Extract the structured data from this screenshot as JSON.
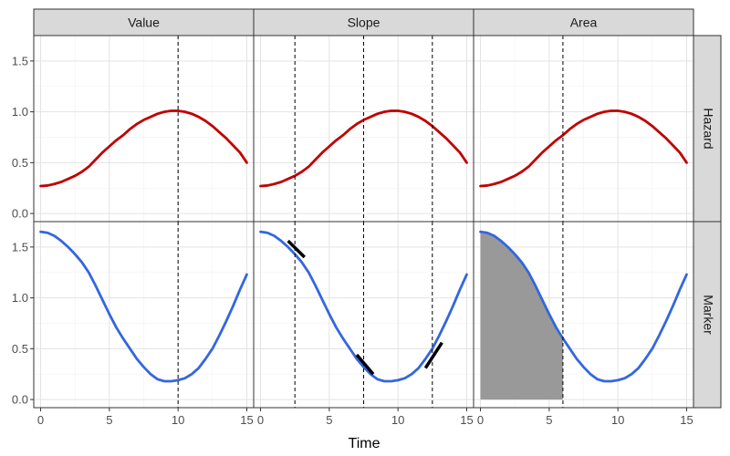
{
  "chart_data": {
    "type": "line",
    "xlabel": "Time",
    "ylabel": "",
    "xlim": [
      -0.5,
      15.5
    ],
    "ylim": [
      -0.08,
      1.75
    ],
    "x_ticks": [
      0,
      5,
      10,
      15
    ],
    "y_ticks": [
      0.0,
      0.5,
      1.0,
      1.5
    ],
    "x_tick_labels": [
      "0",
      "5",
      "10",
      "15"
    ],
    "y_tick_labels": [
      "0.0",
      "0.5",
      "1.0",
      "1.5"
    ],
    "columns": [
      "Value",
      "Slope",
      "Area"
    ],
    "rows": [
      "Hazard",
      "Marker"
    ],
    "grid": true,
    "series": [
      {
        "row": "Hazard",
        "color": "#c00000",
        "x": [
          0,
          0.5,
          1,
          1.5,
          2,
          2.5,
          3,
          3.5,
          4,
          4.5,
          5,
          5.5,
          6,
          6.5,
          7,
          7.5,
          8,
          8.5,
          9,
          9.5,
          10,
          10.5,
          11,
          11.5,
          12,
          12.5,
          13,
          13.5,
          14,
          14.5,
          15
        ],
        "values": [
          0.27,
          0.275,
          0.29,
          0.31,
          0.34,
          0.37,
          0.41,
          0.46,
          0.53,
          0.6,
          0.66,
          0.72,
          0.77,
          0.83,
          0.88,
          0.92,
          0.95,
          0.98,
          1.0,
          1.01,
          1.01,
          1.0,
          0.98,
          0.95,
          0.91,
          0.86,
          0.8,
          0.74,
          0.67,
          0.6,
          0.5
        ]
      },
      {
        "row": "Marker",
        "color": "#3366e0",
        "x": [
          0,
          0.5,
          1,
          1.5,
          2,
          2.5,
          3,
          3.5,
          4,
          4.5,
          5,
          5.5,
          6,
          6.5,
          7,
          7.5,
          8,
          8.5,
          9,
          9.5,
          10,
          10.5,
          11,
          11.5,
          12,
          12.5,
          13,
          13.5,
          14,
          14.5,
          15
        ],
        "values": [
          1.65,
          1.64,
          1.61,
          1.56,
          1.5,
          1.43,
          1.35,
          1.25,
          1.12,
          0.98,
          0.84,
          0.71,
          0.6,
          0.5,
          0.4,
          0.32,
          0.25,
          0.2,
          0.18,
          0.18,
          0.19,
          0.21,
          0.25,
          0.31,
          0.4,
          0.5,
          0.63,
          0.77,
          0.92,
          1.08,
          1.23
        ]
      }
    ],
    "vlines": {
      "Value": [
        10
      ],
      "Slope": [
        2.5,
        7.5,
        12.5
      ],
      "Area": [
        6
      ]
    },
    "slope_segments": [
      {
        "x": [
          2,
          3.2
        ],
        "y": [
          1.56,
          1.4
        ]
      },
      {
        "x": [
          7,
          8.2
        ],
        "y": [
          0.44,
          0.25
        ]
      },
      {
        "x": [
          12,
          13.2
        ],
        "y": [
          0.31,
          0.56
        ]
      }
    ],
    "area_fill": {
      "column": "Area",
      "row": "Marker",
      "from": 0,
      "to": 6,
      "color": "#999999"
    }
  }
}
